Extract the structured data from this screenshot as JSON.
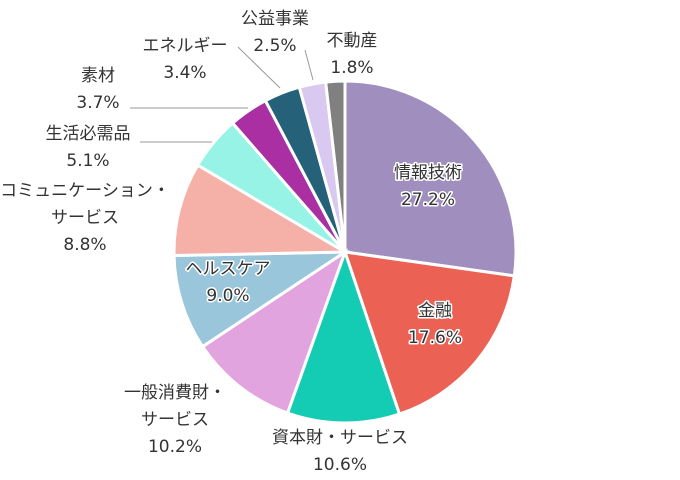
{
  "chart_data": {
    "type": "pie",
    "start": "12 o'clock, clockwise",
    "unit": "%",
    "slices": [
      {
        "label": [
          "情報技術"
        ],
        "value": 27.2,
        "value_label": "27.2%",
        "color": "#a08ebf"
      },
      {
        "label": [
          "金融"
        ],
        "value": 17.6,
        "value_label": "17.6%",
        "color": "#eb6154"
      },
      {
        "label": [
          "資本財・サービス"
        ],
        "value": 10.6,
        "value_label": "10.6%",
        "color": "#14cbb4"
      },
      {
        "label": [
          "一般消費財・",
          "サービス"
        ],
        "value": 10.2,
        "value_label": "10.2%",
        "color": "#e2a4df"
      },
      {
        "label": [
          "ヘルスケア"
        ],
        "value": 9.0,
        "value_label": "9.0%",
        "color": "#99c6db"
      },
      {
        "label": [
          "コミュニケーション・",
          "サービス"
        ],
        "value": 8.8,
        "value_label": "8.8%",
        "color": "#f5b0a8"
      },
      {
        "label": [
          "生活必需品"
        ],
        "value": 5.1,
        "value_label": "5.1%",
        "color": "#96f3e6"
      },
      {
        "label": [
          "素材"
        ],
        "value": 3.7,
        "value_label": "3.7%",
        "color": "#a92fa3"
      },
      {
        "label": [
          "エネルギー"
        ],
        "value": 3.4,
        "value_label": "3.4%",
        "color": "#25627a"
      },
      {
        "label": [
          "公益事業"
        ],
        "value": 2.5,
        "value_label": "2.5%",
        "color": "#d9c8f0"
      },
      {
        "label": [
          "不動産"
        ],
        "value": 1.8,
        "value_label": "1.8%",
        "color": "#808080"
      }
    ]
  }
}
